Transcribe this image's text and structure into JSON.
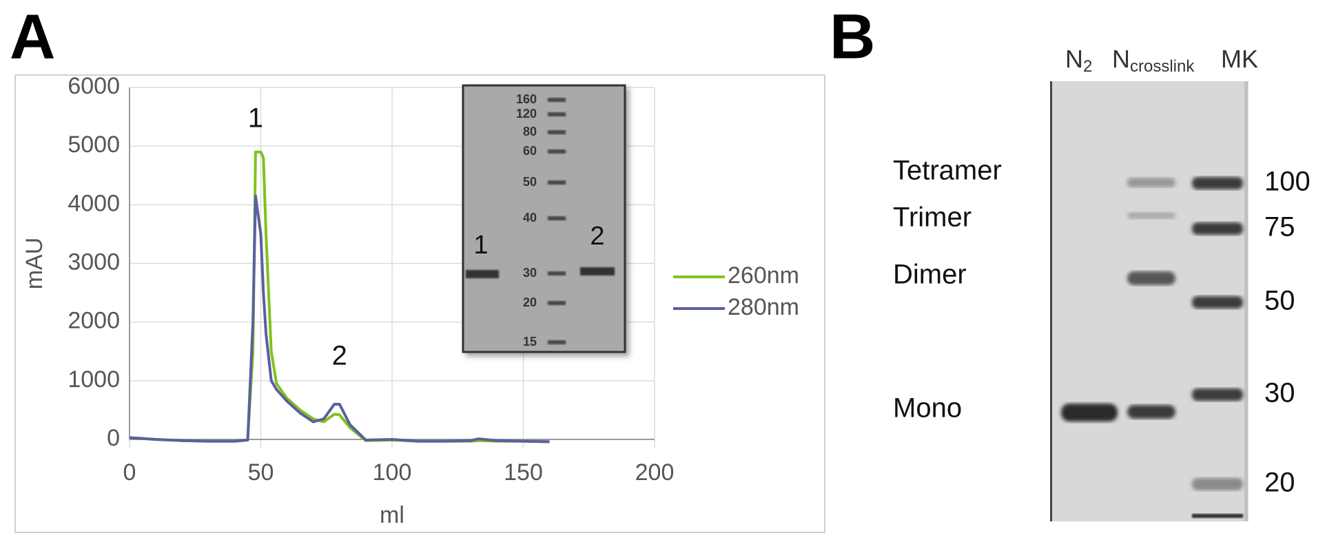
{
  "panel_labels": [
    "A",
    "B"
  ],
  "chart_data": {
    "type": "line",
    "x": [
      0,
      10,
      20,
      30,
      40,
      45,
      47,
      48,
      50,
      51,
      52,
      54,
      56,
      60,
      65,
      70,
      74,
      78,
      80,
      84,
      90,
      100,
      110,
      120,
      130,
      133,
      140,
      150,
      160
    ],
    "series": [
      {
        "name": "260nm",
        "color": "#7fc31c",
        "values": [
          30,
          0,
          -20,
          -30,
          -30,
          -10,
          1500,
          4900,
          4900,
          4800,
          3500,
          1500,
          950,
          700,
          500,
          350,
          300,
          430,
          420,
          200,
          -20,
          -10,
          -30,
          -30,
          -30,
          -20,
          -30,
          -30,
          -40
        ]
      },
      {
        "name": "280nm",
        "color": "#5b5fa0",
        "values": [
          30,
          0,
          -20,
          -30,
          -30,
          -10,
          2000,
          4150,
          3500,
          2500,
          1800,
          1000,
          850,
          650,
          450,
          300,
          350,
          600,
          600,
          250,
          -10,
          0,
          -30,
          -30,
          -20,
          10,
          -20,
          -30,
          -40
        ]
      }
    ],
    "xlabel": "ml",
    "ylabel": "mAU",
    "xlim": [
      0,
      200
    ],
    "xticks": [
      0,
      50,
      100,
      150,
      200
    ],
    "ylim": [
      0,
      6000
    ],
    "yticks": [
      0,
      1000,
      2000,
      3000,
      4000,
      5000,
      6000
    ],
    "grid": true,
    "legend": "right",
    "annotations": [
      {
        "text": "1",
        "x": 48,
        "y": 5450
      },
      {
        "text": "2",
        "x": 80,
        "y": 1400
      }
    ],
    "inset_gel": {
      "marker_labels": [
        "160",
        "120",
        "80",
        "60",
        "50",
        "40",
        "30",
        "20",
        "15"
      ],
      "lane_labels": [
        "1",
        "2"
      ]
    }
  },
  "gel_b": {
    "lanes": [
      {
        "main": "N",
        "sub": "2"
      },
      {
        "main": "N",
        "sub": "crosslink"
      },
      {
        "main": "MK"
      }
    ],
    "band_labels": [
      "Tetramer",
      "Trimer",
      "Dimer",
      "Mono"
    ],
    "marker_labels": [
      "100",
      "75",
      "50",
      "30",
      "20"
    ]
  }
}
